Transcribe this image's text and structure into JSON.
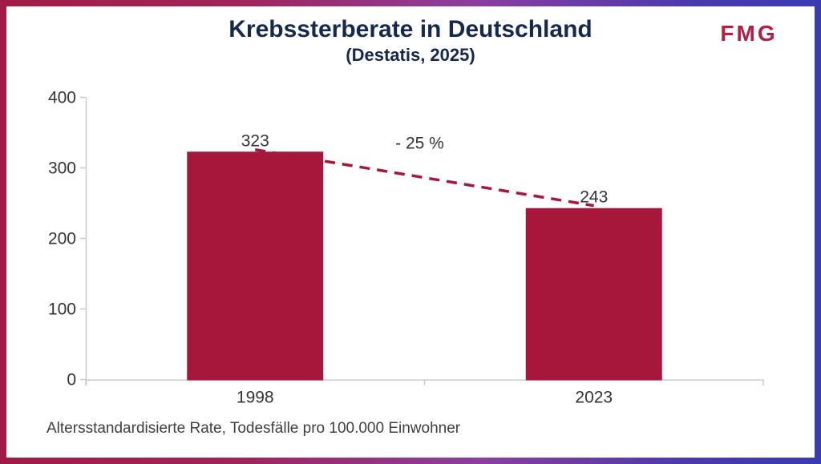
{
  "header": {
    "title": "Krebssterberate in Deutschland",
    "subtitle": "(Destatis, 2025)",
    "logo_text": "FMG"
  },
  "footer": {
    "footnote": "Altersstandardisierte Rate, Todesfälle pro 100.000 Einwohner"
  },
  "colors": {
    "bar": "#A7163B",
    "trend_line": "#A7163B",
    "title_text": "#14294D",
    "logo_text": "#B11F42",
    "axis_line": "#C9C9C9",
    "label_text": "#333333",
    "frame_gradient_left": "#A01C46",
    "frame_gradient_mid": "#8C3E9F",
    "frame_gradient_right": "#3A3BB2"
  },
  "chart_data": {
    "type": "bar",
    "title": "Krebssterberate in Deutschland",
    "subtitle": "(Destatis, 2025)",
    "categories": [
      "1998",
      "2023"
    ],
    "values": [
      323,
      243
    ],
    "bar_value_labels": [
      "323",
      "243"
    ],
    "annotation": "- 25 %",
    "ylim": [
      0,
      400
    ],
    "yticks": [
      0,
      100,
      200,
      300,
      400
    ],
    "ytick_labels": [
      "0",
      "100",
      "200",
      "300",
      "400"
    ],
    "xlabel": "",
    "ylabel": "",
    "grid": false,
    "legend": "none",
    "trend_line": {
      "style": "dashed",
      "from_value": 323,
      "to_value": 243,
      "percent_change": "- 25 %"
    }
  }
}
